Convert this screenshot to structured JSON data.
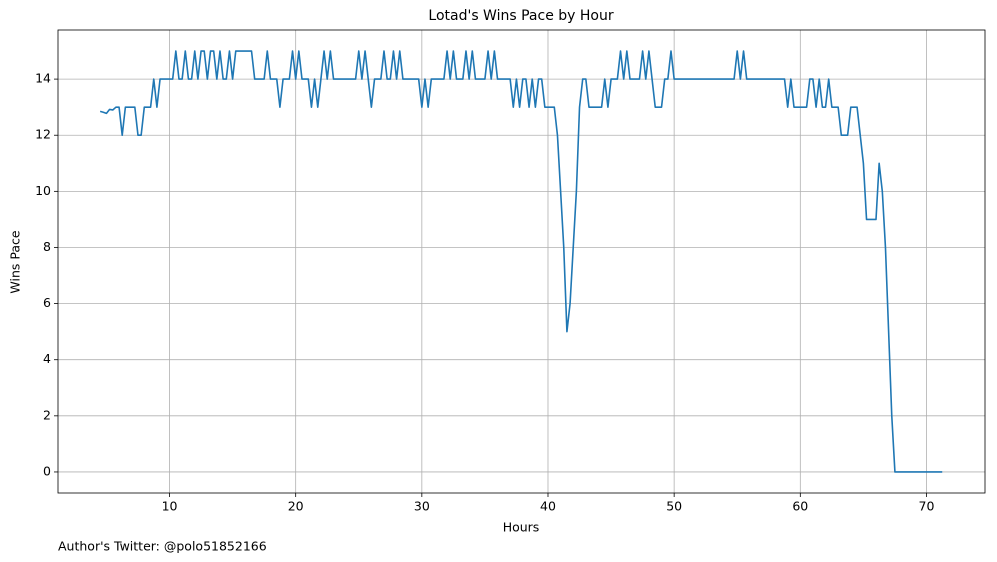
{
  "chart_data": {
    "type": "line",
    "title": "Lotad's Wins Pace by Hour",
    "xlabel": "Hours",
    "ylabel": "Wins Pace",
    "footnote": "Author's Twitter: @polo51852166",
    "color": "#1f77b4",
    "grid": true,
    "xlim": [
      1.16,
      74.64
    ],
    "xticks": [
      10,
      20,
      30,
      40,
      50,
      60,
      70
    ],
    "ylim": [
      -0.75,
      15.75
    ],
    "yticks": [
      0,
      2,
      4,
      6,
      8,
      10,
      12,
      14
    ],
    "x": [
      4.5,
      4.75,
      5,
      5.25,
      5.5,
      5.75,
      6,
      6.25,
      6.5,
      6.75,
      7,
      7.25,
      7.5,
      7.75,
      8,
      8.25,
      8.5,
      8.75,
      9,
      9.25,
      9.5,
      9.75,
      10,
      10.25,
      10.5,
      10.75,
      11,
      11.25,
      11.5,
      11.75,
      12,
      12.25,
      12.5,
      12.75,
      13,
      13.25,
      13.5,
      13.75,
      14,
      14.25,
      14.5,
      14.75,
      15,
      15.25,
      15.5,
      15.75,
      16,
      16.25,
      16.5,
      16.75,
      17,
      17.25,
      17.5,
      17.75,
      18,
      18.25,
      18.5,
      18.75,
      19,
      19.25,
      19.5,
      19.75,
      20,
      20.25,
      20.5,
      20.75,
      21,
      21.25,
      21.5,
      21.75,
      22,
      22.25,
      22.5,
      22.75,
      23,
      23.25,
      23.5,
      23.75,
      24,
      24.25,
      24.5,
      24.75,
      25,
      25.25,
      25.5,
      25.75,
      26,
      26.25,
      26.5,
      26.75,
      27,
      27.25,
      27.5,
      27.75,
      28,
      28.25,
      28.5,
      28.75,
      29,
      29.25,
      29.5,
      29.75,
      30,
      30.25,
      30.5,
      30.75,
      31,
      31.25,
      31.5,
      31.75,
      32,
      32.25,
      32.5,
      32.75,
      33,
      33.25,
      33.5,
      33.75,
      34,
      34.25,
      34.5,
      34.75,
      35,
      35.25,
      35.5,
      35.75,
      36,
      36.25,
      36.5,
      36.75,
      37,
      37.25,
      37.5,
      37.75,
      38,
      38.25,
      38.5,
      38.75,
      39,
      39.25,
      39.5,
      39.75,
      40,
      40.25,
      40.5,
      40.75,
      41,
      41.25,
      41.5,
      41.75,
      42,
      42.25,
      42.5,
      42.75,
      43,
      43.25,
      43.5,
      43.75,
      44,
      44.25,
      44.5,
      44.75,
      45,
      45.25,
      45.5,
      45.75,
      46,
      46.25,
      46.5,
      46.75,
      47,
      47.25,
      47.5,
      47.75,
      48,
      48.25,
      48.5,
      48.75,
      49,
      49.25,
      49.5,
      49.75,
      50,
      50.25,
      50.5,
      50.75,
      51,
      51.25,
      51.5,
      51.75,
      52,
      52.25,
      52.5,
      52.75,
      53,
      53.25,
      53.5,
      53.75,
      54,
      54.25,
      54.5,
      54.75,
      55,
      55.25,
      55.5,
      55.75,
      56,
      56.25,
      56.5,
      56.75,
      57,
      57.25,
      57.5,
      57.75,
      58,
      58.25,
      58.5,
      58.75,
      59,
      59.25,
      59.5,
      59.75,
      60,
      60.25,
      60.5,
      60.75,
      61,
      61.25,
      61.5,
      61.75,
      62,
      62.25,
      62.5,
      62.75,
      63,
      63.25,
      63.5,
      63.75,
      64,
      64.25,
      64.5,
      64.75,
      65,
      65.25,
      65.5,
      65.75,
      66,
      66.25,
      66.5,
      66.75,
      67,
      67.25,
      67.5,
      67.75,
      68,
      68.25,
      68.5,
      68.75,
      69,
      69.25,
      69.5,
      69.75,
      70,
      70.25,
      70.5,
      70.75,
      71,
      71.25
    ],
    "values": [
      12.85,
      12.82,
      12.78,
      12.92,
      12.9,
      13,
      13,
      12,
      13,
      13,
      13,
      13,
      12,
      12,
      13,
      13,
      13,
      14,
      13,
      14,
      14,
      14,
      14,
      14,
      15,
      14,
      14,
      15,
      14,
      14,
      15,
      14,
      15,
      15,
      14,
      15,
      15,
      14,
      15,
      14,
      14,
      15,
      14,
      15,
      15,
      15,
      15,
      15,
      15,
      14,
      14,
      14,
      14,
      15,
      14,
      14,
      14,
      13,
      14,
      14,
      14,
      15,
      14,
      15,
      14,
      14,
      14,
      13,
      14,
      13,
      14,
      15,
      14,
      15,
      14,
      14,
      14,
      14,
      14,
      14,
      14,
      14,
      15,
      14,
      15,
      14,
      13,
      14,
      14,
      14,
      15,
      14,
      14,
      15,
      14,
      15,
      14,
      14,
      14,
      14,
      14,
      14,
      13,
      14,
      13,
      14,
      14,
      14,
      14,
      14,
      15,
      14,
      15,
      14,
      14,
      14,
      15,
      14,
      15,
      14,
      14,
      14,
      14,
      15,
      14,
      15,
      14,
      14,
      14,
      14,
      14,
      13,
      14,
      13,
      14,
      14,
      13,
      14,
      13,
      14,
      14,
      13,
      13,
      13,
      13,
      12,
      10,
      8,
      5,
      6,
      8,
      10,
      13,
      14,
      14,
      13,
      13,
      13,
      13,
      13,
      14,
      13,
      14,
      14,
      14,
      15,
      14,
      15,
      14,
      14,
      14,
      14,
      15,
      14,
      15,
      14,
      13,
      13,
      13,
      14,
      14,
      15,
      14,
      14,
      14,
      14,
      14,
      14,
      14,
      14,
      14,
      14,
      14,
      14,
      14,
      14,
      14,
      14,
      14,
      14,
      14,
      14,
      15,
      14,
      15,
      14,
      14,
      14,
      14,
      14,
      14,
      14,
      14,
      14,
      14,
      14,
      14,
      14,
      13,
      14,
      13,
      13,
      13,
      13,
      13,
      14,
      14,
      13,
      14,
      13,
      13,
      14,
      13,
      13,
      13,
      12,
      12,
      12,
      13,
      13,
      13,
      12,
      11,
      9,
      9,
      9,
      9,
      11,
      10,
      8,
      5,
      2,
      0,
      0,
      0,
      0,
      0,
      0,
      0,
      0,
      0,
      0,
      0,
      0,
      0,
      0,
      0,
      0
    ]
  }
}
